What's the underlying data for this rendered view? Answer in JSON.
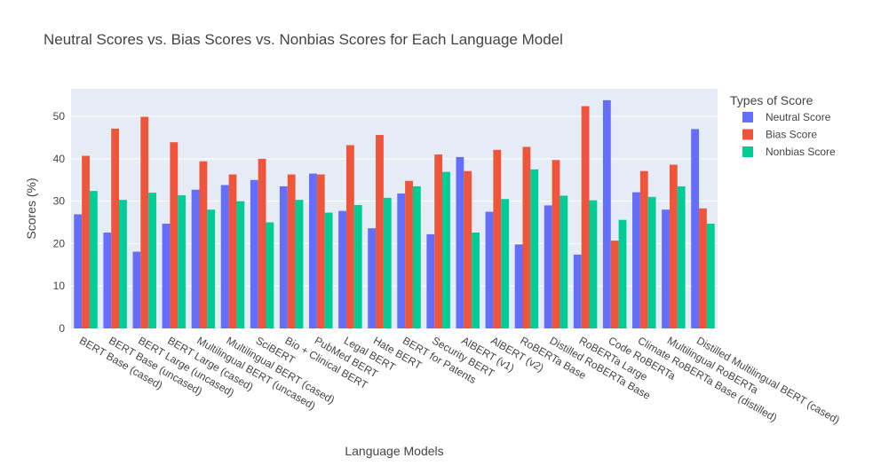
{
  "chart_data": {
    "type": "bar",
    "title": "Neutral Scores vs. Bias Scores vs. Nonbias Scores for Each Language Model",
    "xlabel": "Language Models",
    "ylabel": "Scores (%)",
    "ylim": [
      0,
      56.5
    ],
    "yticks": [
      0,
      10,
      20,
      30,
      40,
      50
    ],
    "grid": true,
    "legend_position": "top-right",
    "legend_title": "Types of Score",
    "categories": [
      "BERT Base (cased)",
      "BERT Base (uncased)",
      "BERT Large (uncased)",
      "BERT Large (cased)",
      "Multilingual BERT (uncased)",
      "Multilingual BERT (cased)",
      "SciBERT",
      "Bio + Clinical BERT",
      "PubMed BERT",
      "Legal BERT",
      "Hate BERT",
      "BERT for Patents",
      "Security BERT",
      "AlBERT (v1)",
      "AlBERT (v2)",
      "RoBERTa Base",
      "Distilled RoBERTa Base",
      "RoBERTa Large",
      "Code RoBERTa",
      "Climate RoBERTa Base (distilled)",
      "Multilingual RoBERTa",
      "Distilled Multilingual BERT (cased)"
    ],
    "series": [
      {
        "name": "Neutral Score",
        "color": "#636efa",
        "values": [
          26.9,
          22.6,
          18.1,
          24.7,
          32.7,
          33.8,
          35.0,
          33.5,
          36.5,
          27.7,
          23.6,
          31.8,
          22.2,
          40.4,
          27.5,
          19.8,
          29.0,
          17.4,
          53.8,
          32.1,
          28.0,
          47.0
        ]
      },
      {
        "name": "Bias Score",
        "color": "#ef553b",
        "values": [
          40.7,
          47.1,
          49.9,
          43.9,
          39.4,
          36.3,
          40.0,
          36.3,
          36.3,
          43.2,
          45.6,
          34.8,
          41.0,
          37.1,
          42.1,
          42.8,
          39.7,
          52.4,
          20.7,
          37.1,
          38.6,
          28.3
        ]
      },
      {
        "name": "Nonbias Score",
        "color": "#00cc96",
        "values": [
          32.4,
          30.3,
          32.0,
          31.4,
          28.0,
          30.0,
          25.0,
          30.3,
          27.3,
          29.1,
          30.8,
          33.5,
          36.9,
          22.6,
          30.5,
          37.5,
          31.3,
          30.2,
          25.6,
          31.0,
          33.5,
          24.7
        ]
      }
    ]
  }
}
